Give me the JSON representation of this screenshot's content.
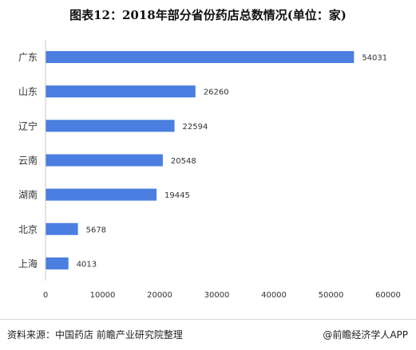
{
  "title": "图表12：2018年部分省份药店总数情况(单位：家)",
  "colors": {
    "bar": "#4a7ee0",
    "axis": "#c8c8c8",
    "text": "#333333"
  },
  "chart_data": {
    "type": "bar",
    "orientation": "horizontal",
    "title": "图表12：2018年部分省份药店总数情况(单位：家)",
    "categories": [
      "广东",
      "山东",
      "辽宁",
      "云南",
      "湖南",
      "北京",
      "上海"
    ],
    "values": [
      54031,
      26260,
      22594,
      20548,
      19445,
      5678,
      4013
    ],
    "xlim": [
      0,
      60000
    ],
    "xticks": [
      0,
      10000,
      20000,
      30000,
      40000,
      50000,
      60000
    ],
    "xlabel": "",
    "ylabel": "",
    "grid": false,
    "legend": "none"
  },
  "footer": {
    "source": "资料来源：中国药店 前瞻产业研究院整理",
    "brand": "@前瞻经济学人APP"
  }
}
